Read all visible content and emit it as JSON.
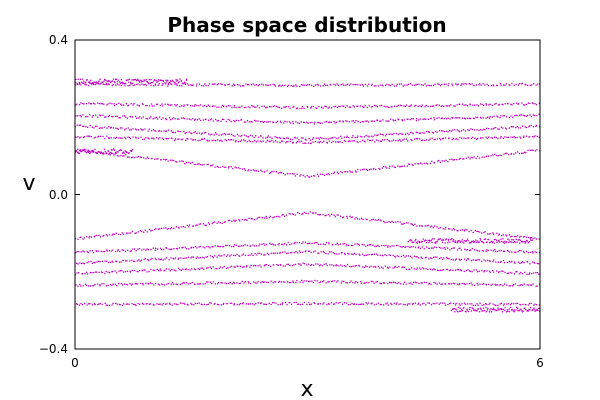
{
  "chart_data": {
    "type": "scatter",
    "title": "Phase space distribution",
    "xlabel": "x",
    "ylabel": "v",
    "xlim": [
      0,
      6
    ],
    "ylim": [
      -0.4,
      0.4
    ],
    "x_ticks": [
      "0",
      "6"
    ],
    "y_ticks": [
      "0.4",
      "0.0",
      "−0.4"
    ],
    "point_color": "#bf00bf",
    "grid": false,
    "series": [
      {
        "trajectories": [
          {
            "base": 0.115,
            "amp": 0.068,
            "dir": -1
          },
          {
            "base": 0.15,
            "amp": 0.015,
            "dir": -1
          },
          {
            "base": 0.178,
            "amp": 0.035,
            "dir": -1
          },
          {
            "base": 0.205,
            "amp": 0.02,
            "dir": -1
          },
          {
            "base": 0.235,
            "amp": 0.01,
            "dir": -1
          },
          {
            "base": 0.285,
            "amp": 0.002,
            "dir": -1
          },
          {
            "base": -0.115,
            "amp": 0.068,
            "dir": 1
          },
          {
            "base": -0.15,
            "amp": 0.025,
            "dir": 1
          },
          {
            "base": -0.178,
            "amp": 0.03,
            "dir": 1
          },
          {
            "base": -0.205,
            "amp": 0.025,
            "dir": 1
          },
          {
            "base": -0.235,
            "amp": 0.01,
            "dir": 1
          },
          {
            "base": -0.285,
            "amp": 0.003,
            "dir": 1
          }
        ],
        "fragments": [
          {
            "x0": 0.0,
            "x1": 1.45,
            "v": 0.293
          },
          {
            "x0": 0.0,
            "x1": 0.75,
            "v": 0.112
          },
          {
            "x0": 4.3,
            "x1": 5.9,
            "v": -0.12
          },
          {
            "x0": 4.85,
            "x1": 6.0,
            "v": -0.298
          }
        ]
      }
    ]
  }
}
